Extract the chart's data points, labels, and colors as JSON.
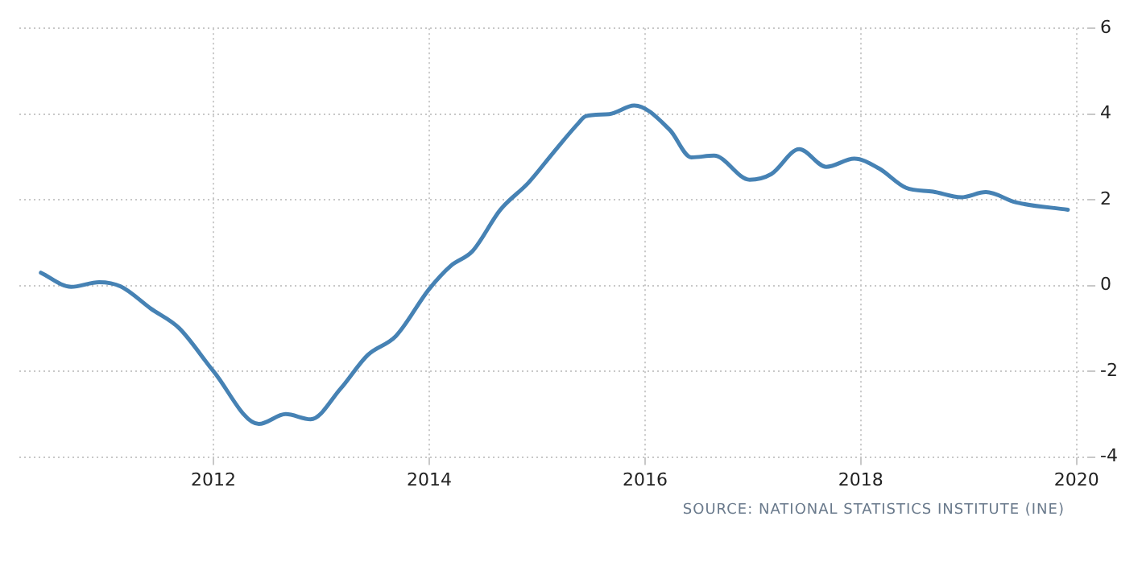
{
  "chart_data": {
    "type": "line",
    "x": [
      2010.4,
      2010.68,
      2010.94,
      2011.14,
      2011.42,
      2011.68,
      2012.0,
      2012.42,
      2012.67,
      2012.9,
      2013.18,
      2013.43,
      2013.69,
      2014.0,
      2014.2,
      2014.4,
      2014.66,
      2014.92,
      2015.15,
      2015.38,
      2015.45,
      2015.67,
      2015.9,
      2016.23,
      2016.43,
      2016.64,
      2016.97,
      2017.17,
      2017.43,
      2017.68,
      2017.94,
      2018.17,
      2018.42,
      2018.67,
      2018.93,
      2019.16,
      2019.44,
      2019.92
    ],
    "series": [
      {
        "color": "#4682b4",
        "values": [
          0.3,
          -0.03,
          0.08,
          -0.02,
          -0.54,
          -0.99,
          -2.0,
          -3.23,
          -3.0,
          -3.12,
          -2.4,
          -1.62,
          -1.18,
          -0.08,
          0.46,
          0.8,
          1.77,
          2.4,
          3.1,
          3.78,
          3.95,
          4.0,
          4.2,
          3.63,
          2.99,
          3.03,
          2.47,
          2.6,
          3.18,
          2.77,
          2.96,
          2.73,
          2.28,
          2.19,
          2.06,
          2.18,
          1.94,
          1.77
        ]
      }
    ],
    "xlim": [
      2010.2,
      2020.1
    ],
    "xticks": [
      2012,
      2014,
      2016,
      2018,
      2020
    ],
    "ylim": [
      -4,
      6
    ],
    "yticks": [
      -4,
      -2,
      0,
      2,
      4,
      6
    ],
    "grid": true,
    "legend": false,
    "marker": "none",
    "line_style": "solid",
    "annotations": [
      "SOURCE: NATIONAL STATISTICS INSTITUTE (INE)"
    ]
  }
}
